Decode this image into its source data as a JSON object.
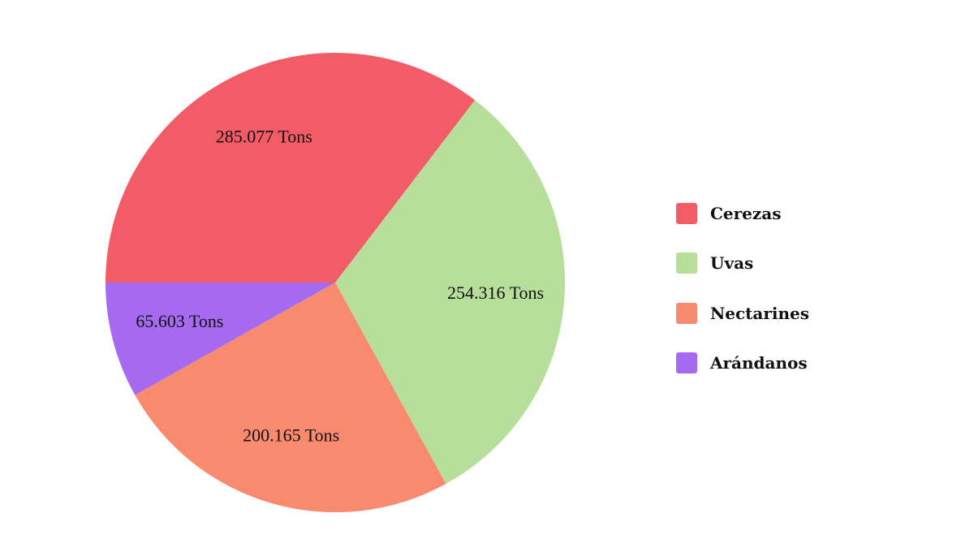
{
  "chart_data": {
    "type": "pie",
    "unit_suffix": " Tons",
    "legend_position": "right",
    "slices": [
      {
        "name": "Cerezas",
        "value": 285.077,
        "label": "285.077 Tons",
        "color": "#F25C67"
      },
      {
        "name": "Uvas",
        "value": 254.316,
        "label": "254.316 Tons",
        "color": "#B7DE9A"
      },
      {
        "name": "Nectarines",
        "value": 200.165,
        "label": "200.165 Tons",
        "color": "#F88A6E"
      },
      {
        "name": "Arándanos",
        "value": 65.603,
        "label": "65.603 Tons",
        "color": "#A56AF0"
      }
    ]
  }
}
